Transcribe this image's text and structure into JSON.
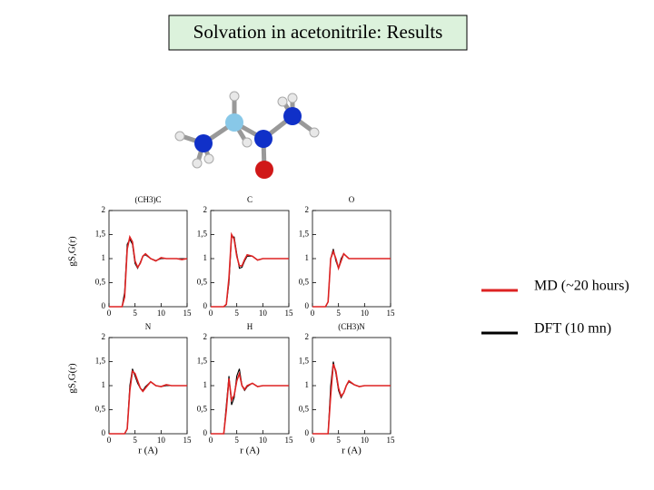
{
  "title": "Solvation in acetonitrile: Results",
  "chart_data": [
    {
      "type": "line",
      "title": "(CH3)C",
      "ylabel": "gS,G(r)",
      "xlim": [
        0,
        15
      ],
      "ylim": [
        0,
        2
      ],
      "xticks": [
        0,
        5,
        10,
        15
      ],
      "yticks": [
        0,
        {
          "value": 0.5,
          "label": "0,5"
        },
        1,
        {
          "value": 1.5,
          "label": "1,5"
        },
        2
      ],
      "x": [
        0,
        2,
        2.5,
        3,
        3.5,
        4,
        4.5,
        5,
        5.5,
        6,
        6.5,
        7,
        8,
        9,
        10,
        11,
        12,
        13,
        14,
        15
      ],
      "series": [
        {
          "name": "MD (~20 hours)",
          "color": "#dd2222",
          "values": [
            0,
            0,
            0,
            0.2,
            1.2,
            1.45,
            1.35,
            0.95,
            0.82,
            0.9,
            1.05,
            1.1,
            1.0,
            0.95,
            1.02,
            1.0,
            1.0,
            1.0,
            0.98,
            1.0
          ]
        },
        {
          "name": "DFT (10 mn)",
          "color": "#000000",
          "values": [
            0,
            0,
            0,
            0.3,
            1.3,
            1.4,
            1.3,
            0.9,
            0.8,
            0.92,
            1.05,
            1.08,
            1.0,
            0.96,
            1.0,
            1.0,
            1.0,
            1.0,
            1.0,
            1.0
          ]
        }
      ]
    },
    {
      "type": "line",
      "title": "C",
      "xlim": [
        0,
        15
      ],
      "ylim": [
        0,
        2
      ],
      "xticks": [
        0,
        5,
        10,
        15
      ],
      "yticks": [
        0,
        {
          "value": 0.5,
          "label": "0,5"
        },
        1,
        {
          "value": 1.5,
          "label": "1,5"
        },
        2
      ],
      "x": [
        0,
        2,
        2.5,
        3,
        3.5,
        4,
        4.5,
        5,
        5.5,
        6,
        6.5,
        7,
        8,
        9,
        10,
        11,
        12,
        13,
        14,
        15
      ],
      "series": [
        {
          "name": "MD (~20 hours)",
          "color": "#dd2222",
          "values": [
            0,
            0,
            0,
            0.05,
            0.6,
            1.5,
            1.4,
            1.05,
            0.85,
            0.85,
            0.98,
            1.08,
            1.05,
            0.97,
            1.0,
            1.0,
            1.0,
            1.0,
            1.0,
            1.0
          ]
        },
        {
          "name": "DFT (10 mn)",
          "color": "#000000",
          "values": [
            0,
            0,
            0,
            0.05,
            0.5,
            1.45,
            1.45,
            1.1,
            0.8,
            0.82,
            0.95,
            1.05,
            1.05,
            0.97,
            1.0,
            1.0,
            1.0,
            1.0,
            1.0,
            1.0
          ]
        }
      ]
    },
    {
      "type": "line",
      "title": "O",
      "xlim": [
        0,
        15
      ],
      "ylim": [
        0,
        2
      ],
      "xticks": [
        0,
        5,
        10,
        15
      ],
      "yticks": [
        0,
        {
          "value": 0.5,
          "label": "0,5"
        },
        1,
        {
          "value": 1.5,
          "label": "1,5"
        },
        2
      ],
      "x": [
        0,
        2,
        2.5,
        3,
        3.5,
        4,
        4.5,
        5,
        5.5,
        6,
        6.5,
        7,
        8,
        9,
        10,
        11,
        12,
        13,
        14,
        15
      ],
      "series": [
        {
          "name": "MD (~20 hours)",
          "color": "#dd2222",
          "values": [
            0,
            0,
            0,
            0.1,
            1.0,
            1.15,
            1.0,
            0.8,
            0.95,
            1.1,
            1.05,
            1.0,
            1.0,
            1.0,
            1.0,
            1.0,
            1.0,
            1.0,
            1.0,
            1.0
          ]
        },
        {
          "name": "DFT (10 mn)",
          "color": "#000000",
          "values": [
            0,
            0,
            0,
            0.1,
            1.0,
            1.2,
            0.95,
            0.8,
            1.0,
            1.1,
            1.05,
            1.0,
            1.0,
            1.0,
            1.0,
            1.0,
            1.0,
            1.0,
            1.0,
            1.0
          ]
        }
      ]
    },
    {
      "type": "line",
      "title": "N",
      "ylabel": "gS,G(r)",
      "xlabel": "r (A)",
      "xlim": [
        0,
        15
      ],
      "ylim": [
        0,
        2
      ],
      "xticks": [
        0,
        5,
        10,
        15
      ],
      "yticks": [
        0,
        {
          "value": 0.5,
          "label": "0,5"
        },
        1,
        {
          "value": 1.5,
          "label": "1,5"
        },
        2
      ],
      "x": [
        0,
        2,
        2.5,
        3,
        3.5,
        4,
        4.5,
        5,
        5.5,
        6,
        6.5,
        7,
        8,
        9,
        10,
        11,
        12,
        13,
        14,
        15
      ],
      "series": [
        {
          "name": "MD (~20 hours)",
          "color": "#dd2222",
          "values": [
            0,
            0,
            0,
            0,
            0.1,
            0.9,
            1.3,
            1.25,
            1.1,
            0.95,
            0.88,
            0.95,
            1.08,
            1.0,
            0.98,
            1.02,
            1.0,
            1.0,
            1.0,
            1.0
          ]
        },
        {
          "name": "DFT (10 mn)",
          "color": "#000000",
          "values": [
            0,
            0,
            0,
            0,
            0.1,
            1.0,
            1.35,
            1.2,
            1.05,
            0.95,
            0.9,
            0.98,
            1.08,
            1.0,
            0.98,
            1.0,
            1.0,
            1.0,
            1.0,
            1.0
          ]
        }
      ]
    },
    {
      "type": "line",
      "title": "H",
      "xlabel": "r (A)",
      "xlim": [
        0,
        15
      ],
      "ylim": [
        0,
        2
      ],
      "xticks": [
        0,
        5,
        10,
        15
      ],
      "yticks": [
        0,
        {
          "value": 0.5,
          "label": "0,5"
        },
        1,
        {
          "value": 1.5,
          "label": "1,5"
        },
        2
      ],
      "x": [
        0,
        2,
        2.5,
        3,
        3.5,
        4,
        4.5,
        5,
        5.5,
        6,
        6.5,
        7,
        8,
        9,
        10,
        11,
        12,
        13,
        14,
        15
      ],
      "series": [
        {
          "name": "MD (~20 hours)",
          "color": "#dd2222",
          "values": [
            0,
            0,
            0,
            0.5,
            1.15,
            0.7,
            0.8,
            1.1,
            1.25,
            1.0,
            0.92,
            1.0,
            1.05,
            0.98,
            1.0,
            1.0,
            1.0,
            1.0,
            1.0,
            1.0
          ]
        },
        {
          "name": "DFT (10 mn)",
          "color": "#000000",
          "values": [
            0,
            0,
            0,
            0.6,
            1.2,
            0.6,
            0.75,
            1.2,
            1.35,
            1.0,
            0.9,
            0.98,
            1.05,
            0.98,
            1.0,
            1.0,
            1.0,
            1.0,
            1.0,
            1.0
          ]
        }
      ]
    },
    {
      "type": "line",
      "title": "(CH3)N",
      "xlabel": "r (A)",
      "xlim": [
        0,
        15
      ],
      "ylim": [
        0,
        2
      ],
      "xticks": [
        0,
        5,
        10,
        15
      ],
      "yticks": [
        0,
        {
          "value": 0.5,
          "label": "0,5"
        },
        1,
        {
          "value": 1.5,
          "label": "1,5"
        },
        2
      ],
      "x": [
        0,
        2,
        2.5,
        3,
        3.5,
        4,
        4.5,
        5,
        5.5,
        6,
        6.5,
        7,
        8,
        9,
        10,
        11,
        12,
        13,
        14,
        15
      ],
      "series": [
        {
          "name": "MD (~20 hours)",
          "color": "#dd2222",
          "values": [
            0,
            0,
            0,
            0,
            0.8,
            1.45,
            1.3,
            0.95,
            0.78,
            0.85,
            1.0,
            1.1,
            1.02,
            0.98,
            1.0,
            1.0,
            1.0,
            1.0,
            1.0,
            1.0
          ]
        },
        {
          "name": "DFT (10 mn)",
          "color": "#000000",
          "values": [
            0,
            0,
            0,
            0,
            1.0,
            1.5,
            1.25,
            0.9,
            0.75,
            0.85,
            1.0,
            1.08,
            1.02,
            0.98,
            1.0,
            1.0,
            1.0,
            1.0,
            1.0,
            1.0
          ]
        }
      ]
    }
  ]
}
